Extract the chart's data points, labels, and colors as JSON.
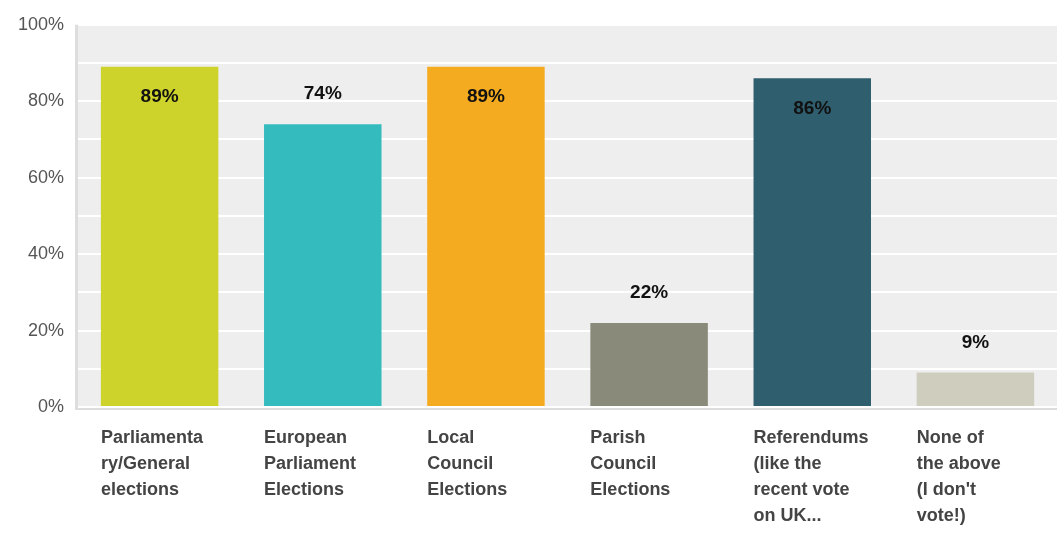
{
  "chart_data": {
    "type": "bar",
    "categories": [
      "Parliamenta\nry/General\nelections",
      "European\nParliament\nElections",
      "Local\nCouncil\nElections",
      "Parish\nCouncil\nElections",
      "Referendums\n(like the\nrecent vote\non UK...",
      "None of\nthe above\n(I don't\nvote!)"
    ],
    "values": [
      89,
      74,
      89,
      22,
      86,
      9
    ],
    "colors": [
      "#cdd32a",
      "#33bbbe",
      "#f5ab1f",
      "#8a8a7a",
      "#2f5f6e",
      "#cfcdbe"
    ],
    "ylim": [
      0,
      100
    ],
    "yticks": [
      {
        "value": 0,
        "label": "0%"
      },
      {
        "value": 10,
        "label": null
      },
      {
        "value": 20,
        "label": "20%"
      },
      {
        "value": 30,
        "label": null
      },
      {
        "value": 40,
        "label": "40%"
      },
      {
        "value": 50,
        "label": null
      },
      {
        "value": 60,
        "label": "60%"
      },
      {
        "value": 70,
        "label": null
      },
      {
        "value": 80,
        "label": "80%"
      },
      {
        "value": 90,
        "label": null
      },
      {
        "value": 100,
        "label": "100%"
      }
    ],
    "grid": "y",
    "value_labels": [
      "89%",
      "74%",
      "89%",
      "22%",
      "86%",
      "9%"
    ]
  }
}
